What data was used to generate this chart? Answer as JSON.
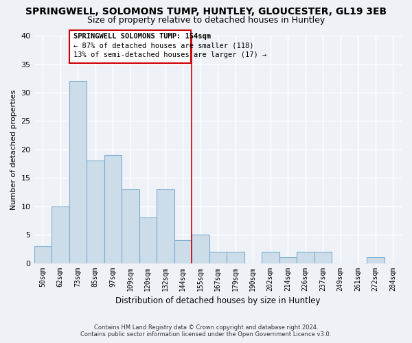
{
  "title": "SPRINGWELL, SOLOMONS TUMP, HUNTLEY, GLOUCESTER, GL19 3EB",
  "subtitle": "Size of property relative to detached houses in Huntley",
  "xlabel": "Distribution of detached houses by size in Huntley",
  "ylabel": "Number of detached properties",
  "footer_line1": "Contains HM Land Registry data © Crown copyright and database right 2024.",
  "footer_line2": "Contains public sector information licensed under the Open Government Licence v3.0.",
  "bins": [
    "50sqm",
    "62sqm",
    "73sqm",
    "85sqm",
    "97sqm",
    "109sqm",
    "120sqm",
    "132sqm",
    "144sqm",
    "155sqm",
    "167sqm",
    "179sqm",
    "190sqm",
    "202sqm",
    "214sqm",
    "226sqm",
    "237sqm",
    "249sqm",
    "261sqm",
    "272sqm",
    "284sqm"
  ],
  "values": [
    3,
    10,
    32,
    18,
    19,
    13,
    8,
    13,
    4,
    5,
    2,
    2,
    0,
    2,
    1,
    2,
    2,
    0,
    0,
    1,
    0
  ],
  "bar_color": "#ccdce8",
  "bar_edge_color": "#7bafd4",
  "property_line_color": "#cc0000",
  "annotation_title": "SPRINGWELL SOLOMONS TUMP: 154sqm",
  "annotation_line1": "← 87% of detached houses are smaller (118)",
  "annotation_line2": "13% of semi-detached houses are larger (17) →",
  "annotation_box_edge": "#cc0000",
  "ylim": [
    0,
    40
  ],
  "yticks": [
    0,
    5,
    10,
    15,
    20,
    25,
    30,
    35,
    40
  ],
  "background_color": "#eef2f7",
  "plot_bg_color": "#eef2f7",
  "grid_color": "white",
  "title_fontsize": 10,
  "subtitle_fontsize": 9
}
